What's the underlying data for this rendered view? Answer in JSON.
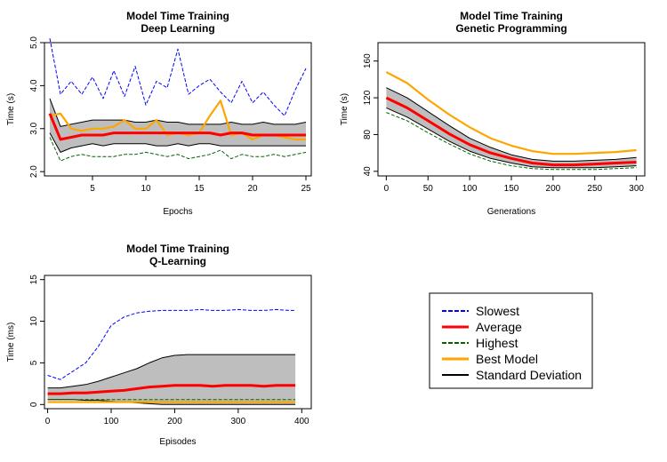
{
  "chart_data": [
    {
      "type": "line",
      "title": "Model Time Training",
      "subtitle": "Deep Learning",
      "xlabel": "Epochs",
      "ylabel": "Time (s)",
      "xlim": [
        0.5,
        25.5
      ],
      "ylim": [
        1.9,
        5.0
      ],
      "xticks": [
        5,
        10,
        15,
        20,
        25
      ],
      "yticks": [
        2.0,
        3.0,
        4.0,
        5.0
      ],
      "xtick_labels": [
        "5",
        "10",
        "15",
        "20",
        "25"
      ],
      "ytick_labels": [
        "2.0",
        "3.0",
        "4.0",
        "5.0"
      ],
      "x": [
        1,
        2,
        3,
        4,
        5,
        6,
        7,
        8,
        9,
        10,
        11,
        12,
        13,
        14,
        15,
        16,
        17,
        18,
        19,
        20,
        21,
        22,
        23,
        24,
        25
      ],
      "series": [
        {
          "name": "Slowest",
          "color": "#0000ff",
          "dash": "dashed",
          "values": [
            5.1,
            3.8,
            4.1,
            3.8,
            4.2,
            3.7,
            4.35,
            3.75,
            4.45,
            3.55,
            4.1,
            3.95,
            4.85,
            3.8,
            4.0,
            4.15,
            3.85,
            3.6,
            4.1,
            3.6,
            3.85,
            3.55,
            3.3,
            3.9,
            4.4
          ]
        },
        {
          "name": "SD upper",
          "color": "#000000",
          "dash": "solid",
          "band": "upper",
          "values": [
            3.7,
            3.05,
            3.1,
            3.15,
            3.2,
            3.2,
            3.2,
            3.2,
            3.15,
            3.15,
            3.2,
            3.15,
            3.15,
            3.1,
            3.1,
            3.1,
            3.1,
            3.15,
            3.1,
            3.1,
            3.15,
            3.1,
            3.1,
            3.1,
            3.15
          ]
        },
        {
          "name": "SD lower",
          "color": "#000000",
          "dash": "solid",
          "band": "lower",
          "values": [
            2.9,
            2.45,
            2.55,
            2.6,
            2.65,
            2.6,
            2.65,
            2.65,
            2.65,
            2.65,
            2.6,
            2.6,
            2.65,
            2.6,
            2.65,
            2.65,
            2.6,
            2.6,
            2.6,
            2.6,
            2.6,
            2.6,
            2.6,
            2.6,
            2.6
          ]
        },
        {
          "name": "Highest",
          "color": "#006400",
          "dash": "dashed",
          "values": [
            2.8,
            2.25,
            2.35,
            2.4,
            2.35,
            2.35,
            2.35,
            2.4,
            2.4,
            2.45,
            2.4,
            2.35,
            2.4,
            2.3,
            2.35,
            2.4,
            2.5,
            2.3,
            2.4,
            2.35,
            2.35,
            2.4,
            2.35,
            2.4,
            2.45
          ]
        },
        {
          "name": "Best Model",
          "color": "#ffa500",
          "dash": "solid",
          "values": [
            3.3,
            3.35,
            3.0,
            2.95,
            3.0,
            3.0,
            3.05,
            3.2,
            3.0,
            3.0,
            3.2,
            2.85,
            2.9,
            2.85,
            2.9,
            3.3,
            3.65,
            2.85,
            2.9,
            2.75,
            2.85,
            2.85,
            2.8,
            2.75,
            2.75
          ]
        },
        {
          "name": "Average",
          "color": "#ff0000",
          "dash": "solid",
          "values": [
            3.35,
            2.75,
            2.8,
            2.85,
            2.85,
            2.85,
            2.9,
            2.9,
            2.9,
            2.9,
            2.9,
            2.9,
            2.9,
            2.9,
            2.9,
            2.9,
            2.85,
            2.9,
            2.9,
            2.85,
            2.85,
            2.85,
            2.85,
            2.85,
            2.85
          ]
        }
      ]
    },
    {
      "type": "line",
      "title": "Model Time Training",
      "subtitle": "Genetic Programming",
      "xlabel": "Generations",
      "ylabel": "Time (s)",
      "xlim": [
        -10,
        310
      ],
      "ylim": [
        35,
        180
      ],
      "xticks": [
        0,
        50,
        100,
        150,
        200,
        250,
        300
      ],
      "yticks": [
        40,
        80,
        120,
        160
      ],
      "xtick_labels": [
        "0",
        "50",
        "100",
        "150",
        "200",
        "250",
        "300"
      ],
      "ytick_labels": [
        "40",
        "80",
        "120",
        "160"
      ],
      "x": [
        0,
        25,
        50,
        75,
        100,
        125,
        150,
        175,
        200,
        225,
        250,
        275,
        300
      ],
      "series": [
        {
          "name": "Best Model",
          "color": "#ffa500",
          "dash": "solid",
          "values": [
            148,
            136,
            118,
            102,
            88,
            76,
            68,
            62,
            59,
            59,
            60,
            61,
            63
          ]
        },
        {
          "name": "SD upper",
          "color": "#000000",
          "dash": "solid",
          "band": "upper",
          "values": [
            131,
            120,
            105,
            90,
            76,
            66,
            58,
            53,
            51,
            51,
            52,
            53,
            55
          ]
        },
        {
          "name": "SD lower",
          "color": "#000000",
          "dash": "solid",
          "band": "lower",
          "values": [
            109,
            99,
            86,
            73,
            62,
            54,
            49,
            45,
            44,
            44,
            44,
            45,
            46
          ]
        },
        {
          "name": "Highest",
          "color": "#006400",
          "dash": "dashed",
          "values": [
            104,
            95,
            82,
            70,
            59,
            51,
            46,
            43,
            42,
            42,
            42,
            43,
            44
          ]
        },
        {
          "name": "Average",
          "color": "#ff0000",
          "dash": "solid",
          "values": [
            120,
            109,
            95,
            81,
            69,
            60,
            54,
            49,
            47,
            47,
            48,
            49,
            50
          ]
        }
      ]
    },
    {
      "type": "line",
      "title": "Model Time Training",
      "subtitle": "Q-Learning",
      "xlabel": "Episodes",
      "ylabel": "Time (ms)",
      "xlim": [
        -5,
        415
      ],
      "ylim": [
        -0.5,
        15.5
      ],
      "xticks": [
        0,
        100,
        200,
        300,
        400
      ],
      "yticks": [
        0,
        5,
        10,
        15
      ],
      "xtick_labels": [
        "0",
        "100",
        "200",
        "300",
        "400"
      ],
      "ytick_labels": [
        "0",
        "5",
        "10",
        "15"
      ],
      "x": [
        0,
        20,
        40,
        60,
        80,
        100,
        120,
        140,
        160,
        180,
        200,
        220,
        240,
        260,
        280,
        300,
        320,
        340,
        360,
        380,
        390
      ],
      "series": [
        {
          "name": "Slowest",
          "color": "#0000ff",
          "dash": "dashed",
          "values": [
            3.5,
            3.0,
            4.0,
            5.0,
            7.0,
            9.5,
            10.5,
            11.0,
            11.2,
            11.3,
            11.3,
            11.3,
            11.4,
            11.3,
            11.3,
            11.4,
            11.3,
            11.3,
            11.4,
            11.3,
            11.3
          ]
        },
        {
          "name": "SD upper",
          "color": "#000000",
          "dash": "solid",
          "band": "upper",
          "values": [
            2.0,
            2.0,
            2.2,
            2.4,
            2.8,
            3.3,
            3.8,
            4.3,
            5.0,
            5.6,
            5.9,
            6.0,
            6.0,
            6.0,
            6.0,
            6.0,
            6.0,
            6.0,
            6.0,
            6.0,
            6.0
          ]
        },
        {
          "name": "SD lower",
          "color": "#000000",
          "dash": "solid",
          "band": "lower",
          "values": [
            0.6,
            0.6,
            0.6,
            0.5,
            0.5,
            0.4,
            0.3,
            0.2,
            0.1,
            0.0,
            0.0,
            0.0,
            0.0,
            0.0,
            0.0,
            0.0,
            0.0,
            0.0,
            0.0,
            0.0,
            0.0
          ]
        },
        {
          "name": "Average",
          "color": "#ff0000",
          "dash": "solid",
          "values": [
            1.3,
            1.3,
            1.4,
            1.4,
            1.5,
            1.6,
            1.7,
            1.9,
            2.1,
            2.2,
            2.3,
            2.3,
            2.3,
            2.2,
            2.3,
            2.3,
            2.3,
            2.2,
            2.3,
            2.3,
            2.3
          ]
        },
        {
          "name": "Highest",
          "color": "#006400",
          "dash": "dashed",
          "values": [
            0.6,
            0.6,
            0.6,
            0.6,
            0.6,
            0.6,
            0.6,
            0.6,
            0.6,
            0.6,
            0.6,
            0.6,
            0.6,
            0.6,
            0.6,
            0.6,
            0.6,
            0.6,
            0.6,
            0.6,
            0.6
          ]
        },
        {
          "name": "Best Model",
          "color": "#ffa500",
          "dash": "solid",
          "values": [
            0.3,
            0.3,
            0.3,
            0.3,
            0.3,
            0.3,
            0.3,
            0.3,
            0.3,
            0.3,
            0.3,
            0.3,
            0.3,
            0.3,
            0.3,
            0.3,
            0.3,
            0.3,
            0.3,
            0.3,
            0.3
          ]
        }
      ]
    }
  ],
  "legend": {
    "placement": "bottom-right",
    "items": [
      {
        "label": "Slowest",
        "color": "#0000ff",
        "dash": "dashed"
      },
      {
        "label": "Average",
        "color": "#ff0000",
        "dash": "solid"
      },
      {
        "label": "Highest",
        "color": "#006400",
        "dash": "dashed"
      },
      {
        "label": "Best Model",
        "color": "#ffa500",
        "dash": "solid"
      },
      {
        "label": "Standard Deviation",
        "color": "#000000",
        "dash": "solid"
      }
    ]
  },
  "band_fill": "#bebebe"
}
